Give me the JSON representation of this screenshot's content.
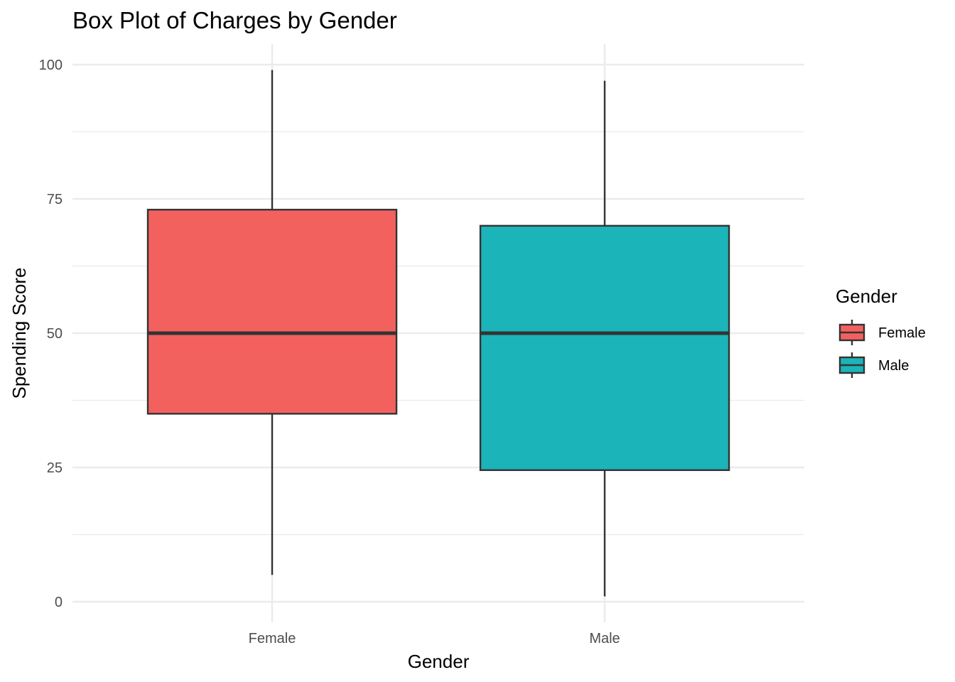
{
  "chart_data": {
    "type": "box",
    "title": "Box Plot of Charges by Gender",
    "xlabel": "Gender",
    "ylabel": "Spending Score",
    "ylim": [
      -7.5,
      104.5
    ],
    "y_ticks": [
      0,
      25,
      50,
      75,
      100
    ],
    "categories": [
      "Female",
      "Male"
    ],
    "series": [
      {
        "name": "Female",
        "color": "#F3615F",
        "min": 5,
        "q1": 35,
        "median": 50,
        "q3": 73,
        "max": 99
      },
      {
        "name": "Male",
        "color": "#1BB4B8",
        "min": 1,
        "q1": 24.5,
        "median": 50,
        "q3": 70,
        "max": 97
      }
    ],
    "grid": true,
    "legend": {
      "title": "Gender",
      "position": "right",
      "items": [
        "Female",
        "Male"
      ]
    }
  }
}
